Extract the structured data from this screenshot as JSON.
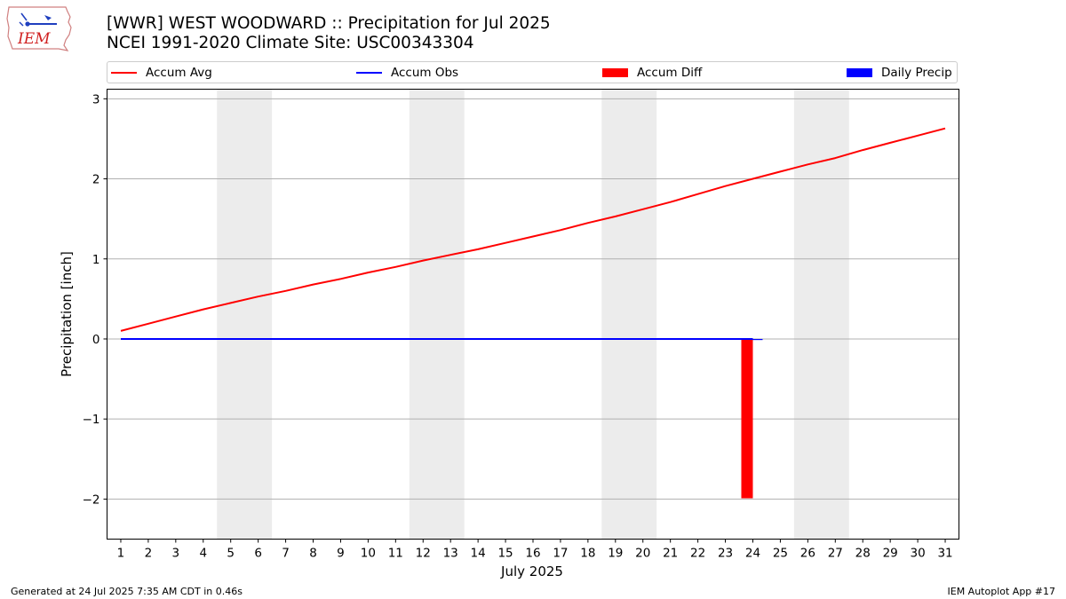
{
  "header": {
    "title": "[WWR] WEST WOODWARD :: Precipitation for Jul 2025",
    "subtitle": "NCEI 1991-2020 Climate Site: USC00343304"
  },
  "logo": {
    "text": "IEM",
    "icon": "iem-iowa-logo-icon"
  },
  "legend": {
    "position": "top",
    "items": [
      {
        "label": "Accum Avg",
        "kind": "line",
        "color": "#ff0000"
      },
      {
        "label": "Accum Obs",
        "kind": "line",
        "color": "#0000ff"
      },
      {
        "label": "Accum Diff",
        "kind": "bar",
        "color": "#ff0000"
      },
      {
        "label": "Daily Precip",
        "kind": "bar",
        "color": "#0000ff"
      }
    ]
  },
  "chart_data": {
    "type": "line",
    "xlabel": "July 2025",
    "ylabel": "Precipitation [inch]",
    "ylim": [
      -2.5,
      3.12
    ],
    "yticks": [
      3,
      2,
      1,
      0,
      -1,
      -2
    ],
    "ytick_labels": [
      "3",
      "2",
      "1",
      "0",
      "−1",
      "−2"
    ],
    "grid": "horizontal",
    "categories": [
      "1",
      "2",
      "3",
      "4",
      "5",
      "6",
      "7",
      "8",
      "9",
      "10",
      "11",
      "12",
      "13",
      "14",
      "15",
      "16",
      "17",
      "18",
      "19",
      "20",
      "21",
      "22",
      "23",
      "24",
      "25",
      "26",
      "27",
      "28",
      "29",
      "30",
      "31"
    ],
    "weekend_shading": [
      [
        5,
        6
      ],
      [
        12,
        13
      ],
      [
        19,
        20
      ],
      [
        26,
        27
      ]
    ],
    "series": [
      {
        "name": "Accum Avg",
        "kind": "line",
        "color": "#ff0000",
        "x": [
          1,
          2,
          3,
          4,
          5,
          6,
          7,
          8,
          9,
          10,
          11,
          12,
          13,
          14,
          15,
          16,
          17,
          18,
          19,
          20,
          21,
          22,
          23,
          24,
          25,
          26,
          27,
          28,
          29,
          30,
          31
        ],
        "values": [
          0.1,
          0.19,
          0.28,
          0.37,
          0.45,
          0.53,
          0.6,
          0.68,
          0.75,
          0.83,
          0.9,
          0.98,
          1.05,
          1.12,
          1.2,
          1.28,
          1.36,
          1.45,
          1.53,
          1.62,
          1.71,
          1.81,
          1.91,
          2.0,
          2.09,
          2.18,
          2.26,
          2.36,
          2.45,
          2.54,
          2.63
        ]
      },
      {
        "name": "Accum Obs",
        "kind": "line",
        "color": "#0000ff",
        "x": [
          1,
          2,
          3,
          4,
          5,
          6,
          7,
          8,
          9,
          10,
          11,
          12,
          13,
          14,
          15,
          16,
          17,
          18,
          19,
          20,
          21,
          22,
          23,
          24
        ],
        "values": [
          0,
          0,
          0,
          0,
          0,
          0,
          0,
          0,
          0,
          0,
          0,
          0,
          0,
          0,
          0,
          0,
          0,
          0,
          0,
          0,
          0,
          0,
          0,
          0
        ]
      },
      {
        "name": "Accum Diff",
        "kind": "bar",
        "color": "#ff0000",
        "x": [
          24
        ],
        "values": [
          -1.99
        ]
      },
      {
        "name": "Daily Precip",
        "kind": "bar",
        "color": "#0000ff",
        "x": [
          24
        ],
        "values": [
          0.0
        ]
      }
    ]
  },
  "footer": {
    "generated": "Generated at 24 Jul 2025 7:35 AM CDT in 0.46s",
    "app": "IEM Autoplot App #17"
  }
}
